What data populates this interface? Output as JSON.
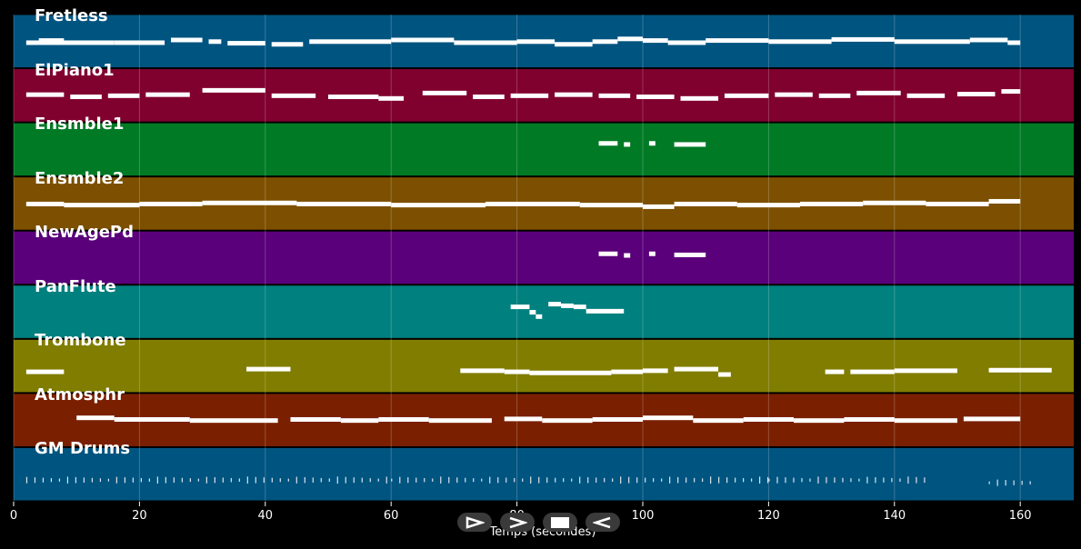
{
  "chart_data": {
    "type": "scatter",
    "xlabel": "Temps (secondes)",
    "xlim": [
      0,
      168.5
    ],
    "x_ticks": [
      "0",
      "20",
      "40",
      "60",
      "80",
      "100",
      "120",
      "140",
      "160"
    ],
    "grid": true,
    "tracks": [
      {
        "name": "Fretless",
        "color": "#005480",
        "notes": [
          [
            2,
            16,
            0.52
          ],
          [
            4,
            8,
            0.48
          ],
          [
            16,
            24,
            0.52
          ],
          [
            25,
            30,
            0.47
          ],
          [
            31,
            33,
            0.5
          ],
          [
            34,
            40,
            0.53
          ],
          [
            41,
            46,
            0.55
          ],
          [
            47,
            60,
            0.5
          ],
          [
            60,
            70,
            0.47
          ],
          [
            70,
            80,
            0.52
          ],
          [
            80,
            86,
            0.5
          ],
          [
            86,
            92,
            0.55
          ],
          [
            92,
            96,
            0.5
          ],
          [
            96,
            100,
            0.45
          ],
          [
            100,
            104,
            0.48
          ],
          [
            104,
            110,
            0.52
          ],
          [
            110,
            120,
            0.48
          ],
          [
            120,
            130,
            0.5
          ],
          [
            130,
            140,
            0.46
          ],
          [
            140,
            152,
            0.5
          ],
          [
            152,
            158,
            0.47
          ],
          [
            158,
            160,
            0.52
          ]
        ]
      },
      {
        "name": "ElPiano1",
        "color": "#80002e",
        "notes": [
          [
            2,
            8,
            0.48
          ],
          [
            9,
            14,
            0.52
          ],
          [
            15,
            20,
            0.5
          ],
          [
            21,
            28,
            0.48
          ],
          [
            30,
            40,
            0.4
          ],
          [
            41,
            48,
            0.5
          ],
          [
            50,
            58,
            0.52
          ],
          [
            58,
            62,
            0.55
          ],
          [
            65,
            72,
            0.45
          ],
          [
            73,
            78,
            0.52
          ],
          [
            79,
            85,
            0.5
          ],
          [
            86,
            92,
            0.48
          ],
          [
            93,
            98,
            0.5
          ],
          [
            99,
            105,
            0.52
          ],
          [
            106,
            112,
            0.55
          ],
          [
            113,
            120,
            0.5
          ],
          [
            121,
            127,
            0.48
          ],
          [
            128,
            133,
            0.5
          ],
          [
            134,
            141,
            0.45
          ],
          [
            142,
            148,
            0.5
          ],
          [
            150,
            156,
            0.47
          ],
          [
            157,
            160,
            0.42
          ]
        ]
      },
      {
        "name": "Ensmble1",
        "color": "#007a25",
        "notes": [
          [
            93,
            96,
            0.38
          ],
          [
            97,
            98,
            0.4
          ],
          [
            101,
            102,
            0.38
          ],
          [
            105,
            110,
            0.4
          ]
        ]
      },
      {
        "name": "Ensmble2",
        "color": "#7c5000",
        "notes": [
          [
            2,
            8,
            0.5
          ],
          [
            8,
            20,
            0.52
          ],
          [
            20,
            30,
            0.5
          ],
          [
            30,
            45,
            0.48
          ],
          [
            45,
            60,
            0.5
          ],
          [
            60,
            75,
            0.52
          ],
          [
            75,
            90,
            0.5
          ],
          [
            90,
            100,
            0.52
          ],
          [
            100,
            105,
            0.55
          ],
          [
            105,
            115,
            0.5
          ],
          [
            115,
            125,
            0.52
          ],
          [
            125,
            135,
            0.5
          ],
          [
            135,
            145,
            0.48
          ],
          [
            145,
            155,
            0.5
          ],
          [
            155,
            160,
            0.45
          ]
        ]
      },
      {
        "name": "NewAgePd",
        "color": "#5a007a",
        "notes": [
          [
            93,
            96,
            0.42
          ],
          [
            97,
            98,
            0.45
          ],
          [
            101,
            102,
            0.42
          ],
          [
            105,
            110,
            0.44
          ]
        ]
      },
      {
        "name": "PanFlute",
        "color": "#00807e",
        "notes": [
          [
            79,
            82,
            0.4
          ],
          [
            82,
            83,
            0.5
          ],
          [
            83,
            84,
            0.58
          ],
          [
            85,
            87,
            0.35
          ],
          [
            87,
            89,
            0.38
          ],
          [
            89,
            91,
            0.4
          ],
          [
            91,
            97,
            0.48
          ]
        ]
      },
      {
        "name": "Trombone",
        "color": "#807d00",
        "notes": [
          [
            2,
            8,
            0.6
          ],
          [
            37,
            44,
            0.55
          ],
          [
            71,
            78,
            0.58
          ],
          [
            78,
            82,
            0.6
          ],
          [
            82,
            95,
            0.62
          ],
          [
            95,
            100,
            0.6
          ],
          [
            100,
            104,
            0.58
          ],
          [
            105,
            112,
            0.55
          ],
          [
            112,
            114,
            0.65
          ],
          [
            129,
            132,
            0.6
          ],
          [
            133,
            140,
            0.6
          ],
          [
            140,
            150,
            0.58
          ],
          [
            155,
            165,
            0.57
          ]
        ]
      },
      {
        "name": "Atmosphr",
        "color": "#7a2000",
        "notes": [
          [
            10,
            16,
            0.45
          ],
          [
            16,
            28,
            0.48
          ],
          [
            28,
            42,
            0.5
          ],
          [
            44,
            52,
            0.48
          ],
          [
            52,
            58,
            0.5
          ],
          [
            58,
            66,
            0.48
          ],
          [
            66,
            76,
            0.5
          ],
          [
            78,
            84,
            0.47
          ],
          [
            84,
            92,
            0.5
          ],
          [
            92,
            100,
            0.48
          ],
          [
            100,
            108,
            0.45
          ],
          [
            108,
            116,
            0.5
          ],
          [
            116,
            124,
            0.48
          ],
          [
            124,
            132,
            0.5
          ],
          [
            132,
            140,
            0.48
          ],
          [
            140,
            150,
            0.5
          ],
          [
            151,
            160,
            0.47
          ]
        ]
      },
      {
        "name": "GM Drums",
        "color": "#005480",
        "notes": [
          [
            2,
            60,
            0.6
          ],
          [
            60,
            120,
            0.6
          ],
          [
            120,
            145,
            0.6
          ],
          [
            155,
            162,
            0.65
          ]
        ]
      }
    ]
  },
  "transport": {
    "play_icon": "play-icon",
    "forward_icon": "forward-icon",
    "stop_icon": "stop-icon",
    "rewind_icon": "rewind-icon"
  }
}
